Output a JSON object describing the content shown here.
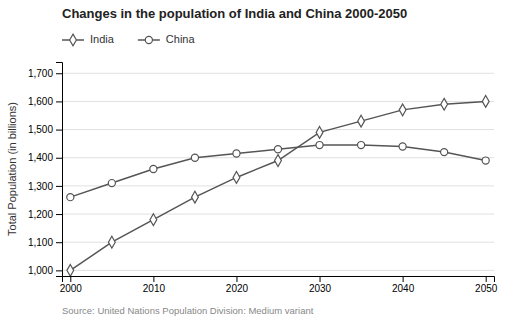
{
  "chart_data": {
    "type": "line",
    "title": "Changes in the population of India and China 2000-2050",
    "ylabel": "Total Population (in billions)",
    "annotations": [
      "Source: United Nations Population Division: Medium variant"
    ],
    "x": [
      2000,
      2005,
      2010,
      2015,
      2020,
      2025,
      2030,
      2035,
      2040,
      2045,
      2050
    ],
    "series": [
      {
        "name": "India",
        "color": "#555555",
        "marker": "diamond",
        "values": [
          1000,
          1100,
          1180,
          1260,
          1330,
          1390,
          1490,
          1530,
          1570,
          1590,
          1600
        ]
      },
      {
        "name": "China",
        "color": "#555555",
        "marker": "circle",
        "values": [
          1260,
          1310,
          1360,
          1400,
          1415,
          1430,
          1445,
          1445,
          1440,
          1420,
          1390
        ]
      }
    ],
    "xlim": [
      1999,
      2051
    ],
    "xticks": [
      2000,
      2010,
      2020,
      2030,
      2040,
      2050
    ],
    "ylim": [
      980,
      1740
    ],
    "yticks": [
      {
        "value": 1000,
        "label": "1,000"
      },
      {
        "value": 1100,
        "label": "1,100"
      },
      {
        "value": 1200,
        "label": "1,200"
      },
      {
        "value": 1300,
        "label": "1,300"
      },
      {
        "value": 1400,
        "label": "1,400"
      },
      {
        "value": 1500,
        "label": "1,500"
      },
      {
        "value": 1600,
        "label": "1,600"
      },
      {
        "value": 1700,
        "label": "1,700"
      }
    ],
    "grid": true,
    "legend": "top-left"
  }
}
